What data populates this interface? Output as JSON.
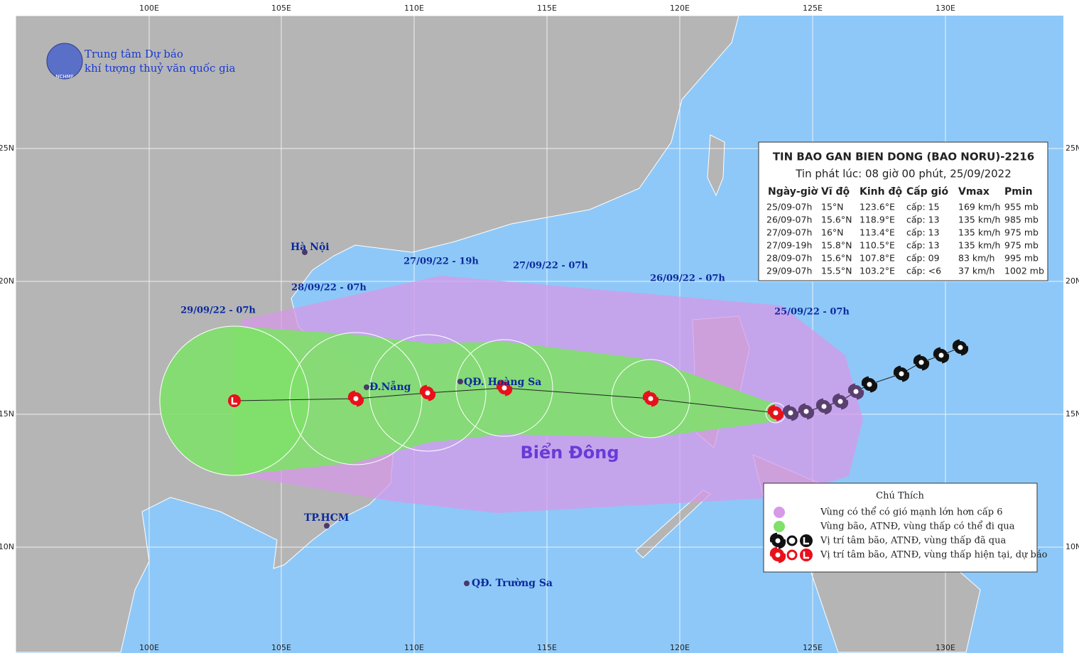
{
  "logo": {
    "line1": "Trung tâm Dự báo",
    "line2": "khí tượng thuỷ văn quốc gia",
    "abbr": "NCHMF"
  },
  "axes": {
    "lon": [
      "100E",
      "105E",
      "110E",
      "115E",
      "120E",
      "125E",
      "130E"
    ],
    "lat": [
      "25N",
      "20N",
      "15N",
      "10N"
    ]
  },
  "places": [
    "Hà Nội",
    "Đ.Nẵng",
    "QĐ. Hoàng Sa",
    "TP.HCM",
    "QĐ. Trường Sa"
  ],
  "sea": "Biển Đông",
  "times": [
    "25/09/22 - 07h",
    "26/09/22 - 07h",
    "27/09/22 - 07h",
    "27/09/22 - 19h",
    "28/09/22 - 07h",
    "29/09/22 - 07h"
  ],
  "bulletin": {
    "title": "TIN BAO GAN BIEN DONG (BAO NORU)-2216",
    "issued": "Tin phát lúc: 08 giờ 00 phút, 25/09/2022",
    "columns": [
      "Ngày-giờ",
      "Vĩ độ",
      "Kinh độ",
      "Cấp gió",
      "Vmax",
      "Pmin"
    ],
    "rows": [
      [
        "25/09-07h",
        "15°N",
        "123.6°E",
        "cấp: 15",
        "169 km/h",
        "955 mb"
      ],
      [
        "26/09-07h",
        "15.6°N",
        "118.9°E",
        "cấp: 13",
        "135 km/h",
        "985 mb"
      ],
      [
        "27/09-07h",
        "16°N",
        "113.4°E",
        "cấp: 13",
        "135 km/h",
        "975 mb"
      ],
      [
        "27/09-19h",
        "15.8°N",
        "110.5°E",
        "cấp: 13",
        "135 km/h",
        "975 mb"
      ],
      [
        "28/09-07h",
        "15.6°N",
        "107.8°E",
        "cấp: 09",
        "83 km/h",
        "995 mb"
      ],
      [
        "29/09-07h",
        "15.5°N",
        "103.2°E",
        "cấp: <6",
        "37 km/h",
        "1002 mb"
      ]
    ]
  },
  "legend": {
    "title": "Chú Thích",
    "items": [
      "Vùng có thể có gió mạnh lớn hơn cấp 6",
      "Vùng bão, ATNĐ, vùng thấp có thể đi qua",
      "Vị trí tâm bão, ATNĐ, vùng thấp đã qua",
      "Vị trí tâm bão, ATNĐ, vùng thấp hiện tại, dự báo"
    ]
  }
}
